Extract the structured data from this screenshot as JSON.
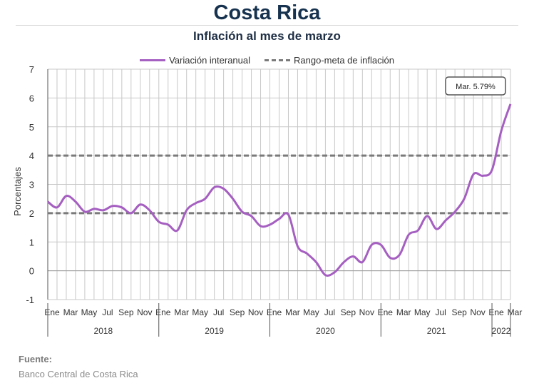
{
  "header": {
    "title": "Costa Rica",
    "subtitle": "Inflación al mes de marzo"
  },
  "legend": {
    "series_label": "Variación interanual",
    "target_label": "Rango-meta de inflación"
  },
  "annotation": {
    "text": "Mar. 5.79%"
  },
  "footer": {
    "source_label": "Fuente:",
    "source_text": "Banco Central de Costa Rica"
  },
  "colors": {
    "series": "#a55fc1",
    "target": "#7a7a7a",
    "grid": "#c8c8c8",
    "title": "#16324f"
  },
  "chart_data": {
    "type": "line",
    "ylabel": "Porcentajes",
    "ylim": [
      -1,
      7
    ],
    "yticks": [
      -1,
      0,
      1,
      2,
      3,
      4,
      5,
      6,
      7
    ],
    "grid": true,
    "legend_position": "top",
    "month_tick_labels": [
      "Ene",
      "Mar",
      "May",
      "Jul",
      "Sep",
      "Nov"
    ],
    "last_group_tick_labels": [
      "Ene",
      "Mar"
    ],
    "year_labels": [
      "2018",
      "2019",
      "2020",
      "2021",
      "2022"
    ],
    "target_band": [
      2,
      4
    ],
    "series": [
      {
        "name": "Variación interanual",
        "x_start": "2018-01",
        "x_end": "2022-03",
        "values": [
          2.4,
          2.2,
          2.6,
          2.4,
          2.05,
          2.15,
          2.1,
          2.25,
          2.2,
          2.0,
          2.3,
          2.1,
          1.7,
          1.6,
          1.4,
          2.1,
          2.35,
          2.5,
          2.9,
          2.85,
          2.5,
          2.05,
          1.9,
          1.55,
          1.6,
          1.8,
          1.95,
          0.85,
          0.6,
          0.3,
          -0.15,
          -0.05,
          0.3,
          0.5,
          0.3,
          0.9,
          0.9,
          0.45,
          0.55,
          1.25,
          1.4,
          1.9,
          1.45,
          1.75,
          2.05,
          2.5,
          3.35,
          3.3,
          3.5,
          4.85,
          5.79
        ]
      }
    ]
  }
}
